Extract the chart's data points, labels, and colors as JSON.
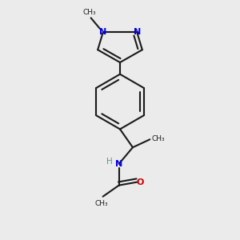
{
  "background_color": "#ebebeb",
  "bond_color": "#1a1a1a",
  "nitrogen_color": "#0000dd",
  "oxygen_color": "#cc0000",
  "hydrogen_color": "#4d9999",
  "bond_width": 1.5,
  "figsize": [
    3.0,
    3.0
  ],
  "dpi": 100,
  "xlim": [
    0.15,
    0.85
  ],
  "ylim": [
    0.05,
    0.95
  ]
}
